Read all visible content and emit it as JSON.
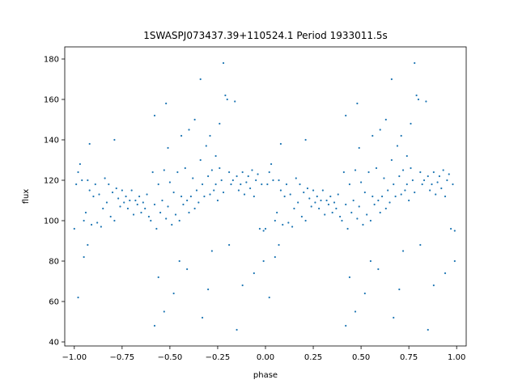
{
  "chart_data": {
    "type": "scatter",
    "title": "1SWASPJ073437.39+110524.1 Period 1933011.5s",
    "xlabel": "phase",
    "ylabel": "flux",
    "xlim": [
      -1.05,
      1.05
    ],
    "ylim": [
      38,
      186
    ],
    "xticks": [
      -1.0,
      -0.75,
      -0.5,
      -0.25,
      0.0,
      0.25,
      0.5,
      0.75,
      1.0
    ],
    "xtick_labels": [
      "−1.00",
      "−0.75",
      "−0.50",
      "−0.25",
      "0.00",
      "0.25",
      "0.50",
      "0.75",
      "1.00"
    ],
    "yticks": [
      40,
      60,
      80,
      100,
      120,
      140,
      160,
      180
    ],
    "ytick_labels": [
      "40",
      "60",
      "80",
      "100",
      "120",
      "140",
      "160",
      "180"
    ],
    "grid": false,
    "point_color": "#1f77b4",
    "note_on_series": "phase-folded light curve; the same series is plotted twice, at phase p and p-1",
    "series": [
      {
        "points": [
          [
            0.0,
            96
          ],
          [
            0.01,
            118
          ],
          [
            0.02,
            124
          ],
          [
            0.03,
            128
          ],
          [
            0.04,
            120
          ],
          [
            0.05,
            100
          ],
          [
            0.06,
            104
          ],
          [
            0.07,
            120
          ],
          [
            0.08,
            115
          ],
          [
            0.09,
            98
          ],
          [
            0.1,
            112
          ],
          [
            0.11,
            118
          ],
          [
            0.12,
            99
          ],
          [
            0.13,
            113
          ],
          [
            0.14,
            97
          ],
          [
            0.15,
            106
          ],
          [
            0.16,
            121
          ],
          [
            0.17,
            109
          ],
          [
            0.18,
            118
          ],
          [
            0.19,
            102
          ],
          [
            0.2,
            114
          ],
          [
            0.21,
            100
          ],
          [
            0.22,
            116
          ],
          [
            0.23,
            111
          ],
          [
            0.24,
            107
          ],
          [
            0.25,
            115
          ],
          [
            0.26,
            109
          ],
          [
            0.27,
            112
          ],
          [
            0.28,
            106
          ],
          [
            0.29,
            110
          ],
          [
            0.3,
            115
          ],
          [
            0.31,
            103
          ],
          [
            0.32,
            110
          ],
          [
            0.33,
            108
          ],
          [
            0.34,
            112
          ],
          [
            0.35,
            104
          ],
          [
            0.36,
            109
          ],
          [
            0.37,
            106
          ],
          [
            0.38,
            113
          ],
          [
            0.39,
            102
          ],
          [
            0.4,
            100
          ],
          [
            0.41,
            124
          ],
          [
            0.42,
            108
          ],
          [
            0.43,
            96
          ],
          [
            0.44,
            118
          ],
          [
            0.45,
            104
          ],
          [
            0.46,
            110
          ],
          [
            0.47,
            125
          ],
          [
            0.48,
            101
          ],
          [
            0.49,
            107
          ],
          [
            0.5,
            119
          ],
          [
            0.51,
            98
          ],
          [
            0.52,
            114
          ],
          [
            0.53,
            103
          ],
          [
            0.54,
            124
          ],
          [
            0.55,
            100
          ],
          [
            0.56,
            112
          ],
          [
            0.57,
            108
          ],
          [
            0.58,
            126
          ],
          [
            0.59,
            110
          ],
          [
            0.6,
            104
          ],
          [
            0.61,
            112
          ],
          [
            0.62,
            121
          ],
          [
            0.63,
            106
          ],
          [
            0.64,
            115
          ],
          [
            0.65,
            109
          ],
          [
            0.66,
            130
          ],
          [
            0.67,
            118
          ],
          [
            0.68,
            112
          ],
          [
            0.69,
            137
          ],
          [
            0.7,
            122
          ],
          [
            0.71,
            113
          ],
          [
            0.72,
            125
          ],
          [
            0.73,
            115
          ],
          [
            0.74,
            118
          ],
          [
            0.75,
            110
          ],
          [
            0.76,
            126
          ],
          [
            0.77,
            120
          ],
          [
            0.78,
            114
          ],
          [
            0.79,
            162
          ],
          [
            0.8,
            160
          ],
          [
            0.81,
            124
          ],
          [
            0.82,
            118
          ],
          [
            0.83,
            120
          ],
          [
            0.84,
            159
          ],
          [
            0.85,
            122
          ],
          [
            0.86,
            115
          ],
          [
            0.87,
            118
          ],
          [
            0.88,
            124
          ],
          [
            0.89,
            113
          ],
          [
            0.9,
            119
          ],
          [
            0.91,
            122
          ],
          [
            0.92,
            116
          ],
          [
            0.93,
            125
          ],
          [
            0.94,
            112
          ],
          [
            0.95,
            120
          ],
          [
            0.96,
            123
          ],
          [
            0.97,
            96
          ],
          [
            0.98,
            118
          ],
          [
            0.99,
            95
          ],
          [
            0.02,
            62
          ],
          [
            0.05,
            82
          ],
          [
            0.07,
            88
          ],
          [
            0.21,
            140
          ],
          [
            0.42,
            48
          ],
          [
            0.44,
            72
          ],
          [
            0.47,
            55
          ],
          [
            0.48,
            158
          ],
          [
            0.52,
            64
          ],
          [
            0.55,
            80
          ],
          [
            0.56,
            142
          ],
          [
            0.59,
            76
          ],
          [
            0.63,
            150
          ],
          [
            0.66,
            170
          ],
          [
            0.67,
            52
          ],
          [
            0.7,
            66
          ],
          [
            0.72,
            85
          ],
          [
            0.76,
            148
          ],
          [
            0.81,
            88
          ],
          [
            0.85,
            46
          ],
          [
            0.88,
            68
          ],
          [
            0.94,
            74
          ],
          [
            0.99,
            80
          ],
          [
            0.42,
            152
          ],
          [
            0.49,
            136
          ],
          [
            0.6,
            145
          ],
          [
            0.71,
            142
          ],
          [
            0.74,
            132
          ],
          [
            0.78,
            178
          ],
          [
            0.08,
            138
          ]
        ]
      }
    ]
  }
}
